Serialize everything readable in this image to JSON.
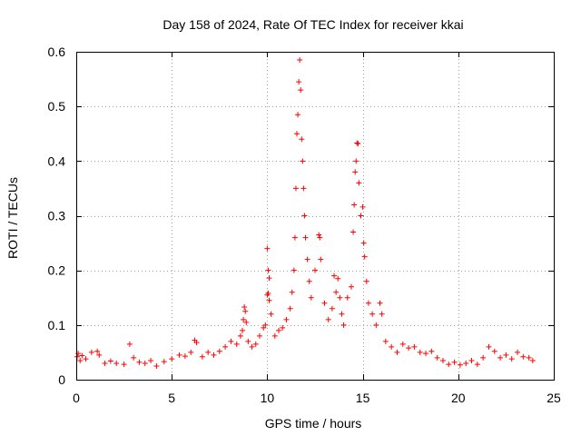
{
  "chart_data": {
    "type": "scatter",
    "title": "Day 158 of 2024, Rate Of TEC Index for receiver kkai",
    "xlabel": "GPS time / hours",
    "ylabel": "ROTI / TECUs",
    "xlim": [
      0,
      25
    ],
    "ylim": [
      0,
      0.6
    ],
    "xticks": [
      0,
      5,
      10,
      15,
      20,
      25
    ],
    "xtick_labels": [
      "0",
      "5",
      "10",
      "15",
      "20",
      "25"
    ],
    "yticks": [
      0,
      0.1,
      0.2,
      0.3,
      0.4,
      0.5,
      0.6
    ],
    "ytick_labels": [
      "0",
      "0.1",
      "0.2",
      "0.3",
      "0.4",
      "0.5",
      "0.6"
    ],
    "grid": true,
    "marker": "plus",
    "series": [
      {
        "name": "ROTI",
        "color": "#ff0000",
        "points": [
          [
            0.05,
            0.042
          ],
          [
            0.1,
            0.048
          ],
          [
            0.2,
            0.035
          ],
          [
            0.3,
            0.044
          ],
          [
            0.5,
            0.038
          ],
          [
            0.8,
            0.05
          ],
          [
            1.1,
            0.052
          ],
          [
            1.2,
            0.045
          ],
          [
            1.5,
            0.03
          ],
          [
            1.8,
            0.034
          ],
          [
            2.1,
            0.03
          ],
          [
            2.5,
            0.028
          ],
          [
            2.8,
            0.065
          ],
          [
            3.0,
            0.04
          ],
          [
            3.3,
            0.032
          ],
          [
            3.6,
            0.03
          ],
          [
            3.9,
            0.035
          ],
          [
            4.2,
            0.025
          ],
          [
            4.6,
            0.033
          ],
          [
            5.0,
            0.038
          ],
          [
            5.4,
            0.045
          ],
          [
            5.7,
            0.043
          ],
          [
            6.0,
            0.05
          ],
          [
            6.2,
            0.072
          ],
          [
            6.3,
            0.068
          ],
          [
            6.6,
            0.042
          ],
          [
            6.9,
            0.05
          ],
          [
            7.2,
            0.045
          ],
          [
            7.5,
            0.052
          ],
          [
            7.8,
            0.06
          ],
          [
            8.1,
            0.07
          ],
          [
            8.4,
            0.065
          ],
          [
            8.6,
            0.08
          ],
          [
            8.7,
            0.09
          ],
          [
            8.75,
            0.11
          ],
          [
            8.8,
            0.133
          ],
          [
            8.85,
            0.125
          ],
          [
            8.9,
            0.105
          ],
          [
            9.0,
            0.07
          ],
          [
            9.2,
            0.06
          ],
          [
            9.4,
            0.065
          ],
          [
            9.6,
            0.08
          ],
          [
            9.8,
            0.095
          ],
          [
            9.9,
            0.1
          ],
          [
            10.0,
            0.155
          ],
          [
            10.05,
            0.158
          ],
          [
            10.1,
            0.145
          ],
          [
            10.0,
            0.24
          ],
          [
            10.05,
            0.2
          ],
          [
            10.1,
            0.186
          ],
          [
            10.2,
            0.12
          ],
          [
            10.4,
            0.08
          ],
          [
            10.6,
            0.09
          ],
          [
            10.8,
            0.095
          ],
          [
            11.0,
            0.11
          ],
          [
            11.2,
            0.13
          ],
          [
            11.3,
            0.16
          ],
          [
            11.4,
            0.2
          ],
          [
            11.45,
            0.26
          ],
          [
            11.5,
            0.35
          ],
          [
            11.55,
            0.45
          ],
          [
            11.6,
            0.485
          ],
          [
            11.65,
            0.545
          ],
          [
            11.7,
            0.585
          ],
          [
            11.75,
            0.53
          ],
          [
            11.8,
            0.44
          ],
          [
            11.85,
            0.4
          ],
          [
            11.9,
            0.35
          ],
          [
            11.95,
            0.3
          ],
          [
            12.0,
            0.26
          ],
          [
            12.1,
            0.22
          ],
          [
            12.2,
            0.18
          ],
          [
            12.3,
            0.15
          ],
          [
            12.5,
            0.2
          ],
          [
            12.7,
            0.265
          ],
          [
            12.75,
            0.26
          ],
          [
            12.8,
            0.22
          ],
          [
            13.0,
            0.14
          ],
          [
            13.2,
            0.11
          ],
          [
            13.4,
            0.13
          ],
          [
            13.5,
            0.19
          ],
          [
            13.6,
            0.16
          ],
          [
            13.7,
            0.185
          ],
          [
            13.8,
            0.15
          ],
          [
            13.9,
            0.12
          ],
          [
            14.0,
            0.1
          ],
          [
            14.2,
            0.15
          ],
          [
            14.4,
            0.17
          ],
          [
            14.5,
            0.27
          ],
          [
            14.55,
            0.32
          ],
          [
            14.6,
            0.38
          ],
          [
            14.65,
            0.4
          ],
          [
            14.7,
            0.433
          ],
          [
            14.75,
            0.432
          ],
          [
            14.8,
            0.36
          ],
          [
            14.9,
            0.3
          ],
          [
            15.0,
            0.316
          ],
          [
            15.05,
            0.25
          ],
          [
            15.1,
            0.225
          ],
          [
            15.2,
            0.18
          ],
          [
            15.3,
            0.14
          ],
          [
            15.5,
            0.12
          ],
          [
            15.7,
            0.1
          ],
          [
            15.9,
            0.14
          ],
          [
            16.0,
            0.12
          ],
          [
            16.2,
            0.07
          ],
          [
            16.5,
            0.06
          ],
          [
            16.8,
            0.05
          ],
          [
            17.1,
            0.065
          ],
          [
            17.4,
            0.058
          ],
          [
            17.7,
            0.06
          ],
          [
            18.0,
            0.05
          ],
          [
            18.3,
            0.048
          ],
          [
            18.6,
            0.052
          ],
          [
            18.9,
            0.04
          ],
          [
            19.2,
            0.035
          ],
          [
            19.5,
            0.028
          ],
          [
            19.8,
            0.032
          ],
          [
            20.1,
            0.027
          ],
          [
            20.4,
            0.03
          ],
          [
            20.7,
            0.035
          ],
          [
            21.0,
            0.028
          ],
          [
            21.3,
            0.04
          ],
          [
            21.6,
            0.06
          ],
          [
            21.9,
            0.052
          ],
          [
            22.2,
            0.04
          ],
          [
            22.5,
            0.045
          ],
          [
            22.8,
            0.038
          ],
          [
            23.1,
            0.05
          ],
          [
            23.4,
            0.042
          ],
          [
            23.7,
            0.04
          ],
          [
            23.9,
            0.035
          ]
        ]
      }
    ]
  }
}
